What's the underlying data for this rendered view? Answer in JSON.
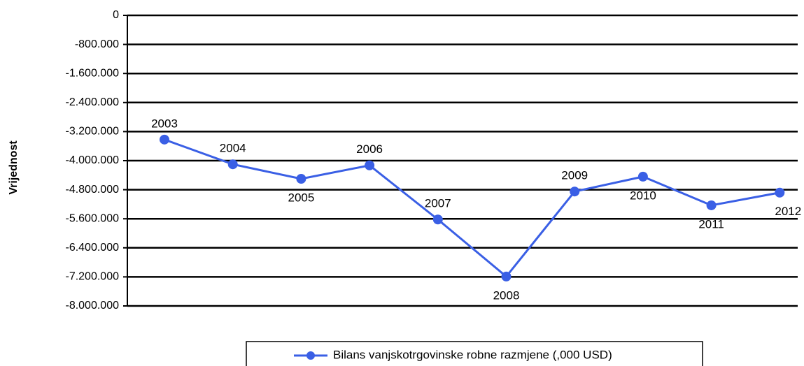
{
  "chart_data": {
    "type": "line",
    "y_label": "Vrijednost",
    "categories": [
      "2003",
      "2004",
      "2005",
      "2006",
      "2007",
      "2008",
      "2009",
      "2010",
      "2011",
      "2012"
    ],
    "series": [
      {
        "name": "Bilans vanjskotrgovinske robne razmjene (,000 USD)",
        "color": "#3a5fe5",
        "values": [
          -3420000,
          -4100000,
          -4500000,
          -4130000,
          -5620000,
          -7190000,
          -4850000,
          -4440000,
          -5230000,
          -4880000
        ]
      }
    ],
    "ylim": [
      -8000000,
      0
    ],
    "yticks": [
      0,
      {
        "value": -800000,
        "label": "-800.000"
      },
      {
        "value": -1600000,
        "label": "-1.600.000"
      },
      {
        "value": -2400000,
        "label": "-2.400.000"
      },
      {
        "value": -3200000,
        "label": "-3.200.000"
      },
      {
        "value": -4000000,
        "label": "-4.000.000"
      },
      {
        "value": -4800000,
        "label": "-4.800.000"
      },
      {
        "value": -5600000,
        "label": "-5.600.000"
      },
      {
        "value": -6400000,
        "label": "-6.400.000"
      },
      {
        "value": -7200000,
        "label": "-7.200.000"
      },
      {
        "value": -8000000,
        "label": "-8.000.000"
      }
    ],
    "grid": true,
    "legend": "bottom"
  }
}
